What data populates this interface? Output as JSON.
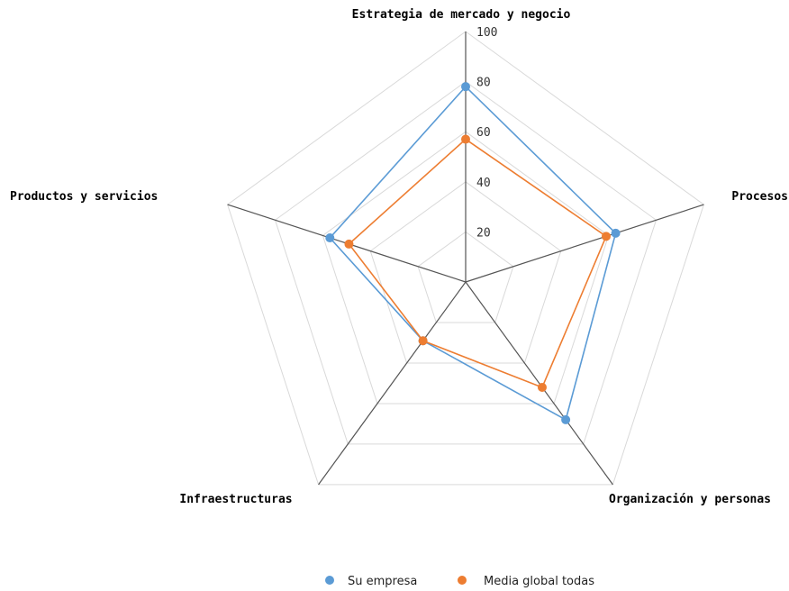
{
  "chart_data": {
    "type": "radar",
    "axes": [
      "Estrategia de mercado y negocio",
      "Procesos",
      "Organización y personas",
      "Infraestructuras",
      "Productos y servicios"
    ],
    "ticks": [
      "20",
      "40",
      "60",
      "80",
      "100"
    ],
    "range": [
      0,
      100
    ],
    "series": [
      {
        "name": "Su empresa",
        "color": "#5b9bd5",
        "values": [
          78,
          63,
          68,
          29,
          57
        ]
      },
      {
        "name": "Media global todas",
        "color": "#ed7d31",
        "values": [
          57,
          59,
          52,
          29,
          49
        ]
      }
    ],
    "legend_position": "bottom"
  }
}
